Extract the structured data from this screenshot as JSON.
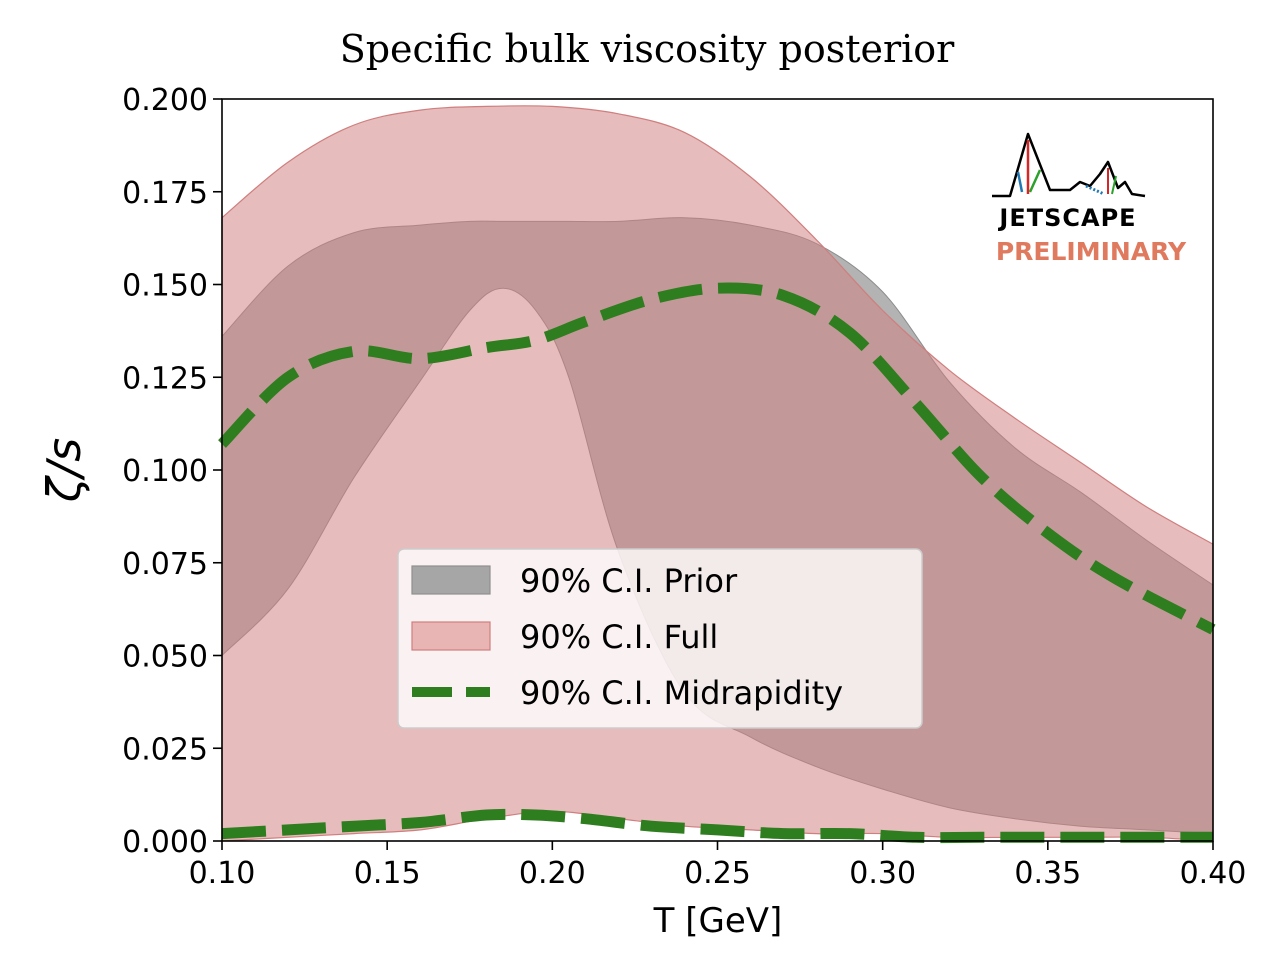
{
  "chart_data": {
    "type": "area",
    "title": "Specific bulk viscosity posterior",
    "xlabel": "T [GeV]",
    "ylabel": "ζ/s",
    "xlim": [
      0.1,
      0.4
    ],
    "ylim": [
      0.0,
      0.2
    ],
    "xticks": [
      "0.10",
      "0.15",
      "0.20",
      "0.25",
      "0.30",
      "0.35",
      "0.40"
    ],
    "yticks": [
      "0.000",
      "0.025",
      "0.050",
      "0.075",
      "0.100",
      "0.125",
      "0.150",
      "0.175",
      "0.200"
    ],
    "legend_position": "center-left",
    "series": [
      {
        "name": "90% C.I. Prior",
        "kind": "band",
        "color": "#a6a6a6",
        "x": [
          0.1,
          0.12,
          0.14,
          0.16,
          0.175,
          0.185,
          0.195,
          0.205,
          0.22,
          0.24,
          0.26,
          0.28,
          0.3,
          0.32,
          0.34,
          0.36,
          0.38,
          0.4
        ],
        "upper": [
          0.136,
          0.155,
          0.164,
          0.166,
          0.167,
          0.167,
          0.167,
          0.167,
          0.167,
          0.168,
          0.166,
          0.161,
          0.148,
          0.124,
          0.106,
          0.094,
          0.081,
          0.069
        ],
        "lower": [
          0.05,
          0.068,
          0.098,
          0.124,
          0.143,
          0.149,
          0.143,
          0.125,
          0.078,
          0.04,
          0.028,
          0.02,
          0.014,
          0.009,
          0.006,
          0.004,
          0.003,
          0.002
        ]
      },
      {
        "name": "90% C.I. Full",
        "kind": "band",
        "color": "#d07e7e",
        "x": [
          0.1,
          0.12,
          0.14,
          0.16,
          0.18,
          0.2,
          0.22,
          0.24,
          0.26,
          0.28,
          0.3,
          0.32,
          0.34,
          0.36,
          0.38,
          0.4
        ],
        "upper": [
          0.168,
          0.183,
          0.193,
          0.197,
          0.198,
          0.198,
          0.196,
          0.191,
          0.179,
          0.162,
          0.143,
          0.127,
          0.114,
          0.102,
          0.09,
          0.08
        ],
        "lower": [
          0.0,
          0.001,
          0.002,
          0.003,
          0.006,
          0.008,
          0.006,
          0.004,
          0.003,
          0.002,
          0.002,
          0.001,
          0.001,
          0.001,
          0.001,
          0.0
        ]
      },
      {
        "name": "90% C.I. Midrapidity",
        "kind": "dashed-bounds",
        "color": "#2e7d1f",
        "x": [
          0.1,
          0.12,
          0.14,
          0.16,
          0.18,
          0.195,
          0.21,
          0.23,
          0.25,
          0.27,
          0.29,
          0.31,
          0.33,
          0.35,
          0.37,
          0.4
        ],
        "upper": [
          0.107,
          0.125,
          0.132,
          0.13,
          0.133,
          0.135,
          0.14,
          0.146,
          0.149,
          0.147,
          0.137,
          0.118,
          0.098,
          0.083,
          0.071,
          0.057
        ],
        "lower": [
          0.002,
          0.003,
          0.004,
          0.005,
          0.007,
          0.007,
          0.006,
          0.004,
          0.003,
          0.002,
          0.002,
          0.001,
          0.001,
          0.001,
          0.001,
          0.001
        ]
      }
    ]
  },
  "logo": {
    "name": "JETSCAPE",
    "badge": "PRELIMINARY",
    "badge_color": "#e07a5f"
  }
}
